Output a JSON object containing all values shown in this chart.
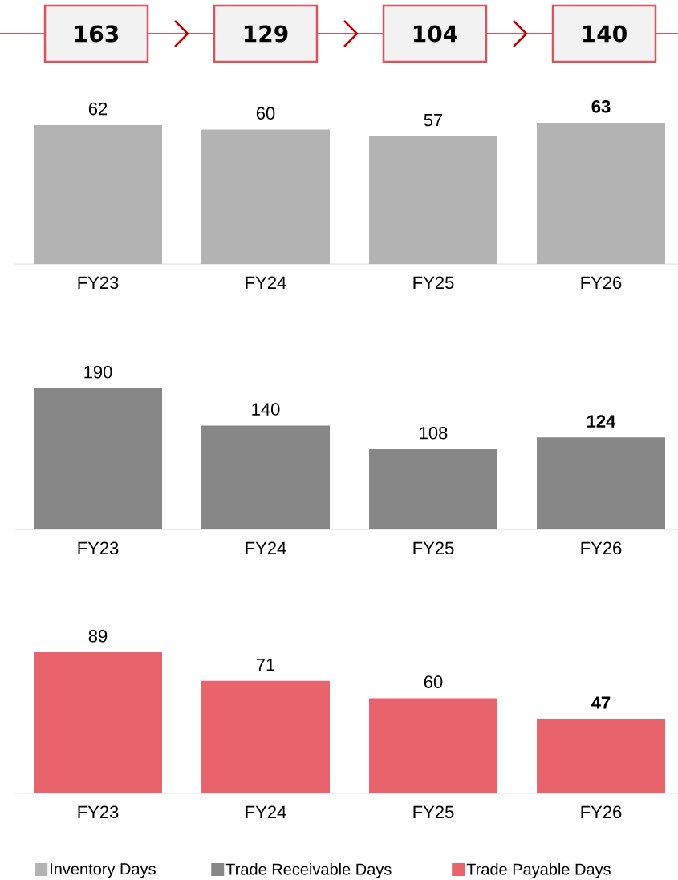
{
  "chart_data": [
    {
      "type": "other",
      "color": "#d9545c",
      "data_labels": true,
      "values": [
        163,
        129,
        104,
        140
      ]
    },
    {
      "type": "bar",
      "categories": [
        "FY23",
        "FY24",
        "FY25",
        "FY26"
      ],
      "data_labels": true,
      "tick_labels": "x",
      "legend": "bottom",
      "series": [
        {
          "name": "Inventory Days",
          "color": "#b3b3b3",
          "values": [
            62,
            60,
            57,
            63
          ]
        }
      ]
    },
    {
      "type": "bar",
      "categories": [
        "FY23",
        "FY24",
        "FY25",
        "FY26"
      ],
      "data_labels": true,
      "tick_labels": "x",
      "legend": "bottom",
      "series": [
        {
          "name": "Trade Receivable Days",
          "color": "#878787",
          "values": [
            190,
            140,
            108,
            124
          ]
        }
      ]
    },
    {
      "type": "bar",
      "categories": [
        "FY23",
        "FY24",
        "FY25",
        "FY26"
      ],
      "data_labels": true,
      "tick_labels": "x",
      "legend": "bottom",
      "series": [
        {
          "name": "Trade Payable Days",
          "color": "#e8636b",
          "values": [
            89,
            71,
            60,
            47
          ]
        }
      ]
    }
  ]
}
